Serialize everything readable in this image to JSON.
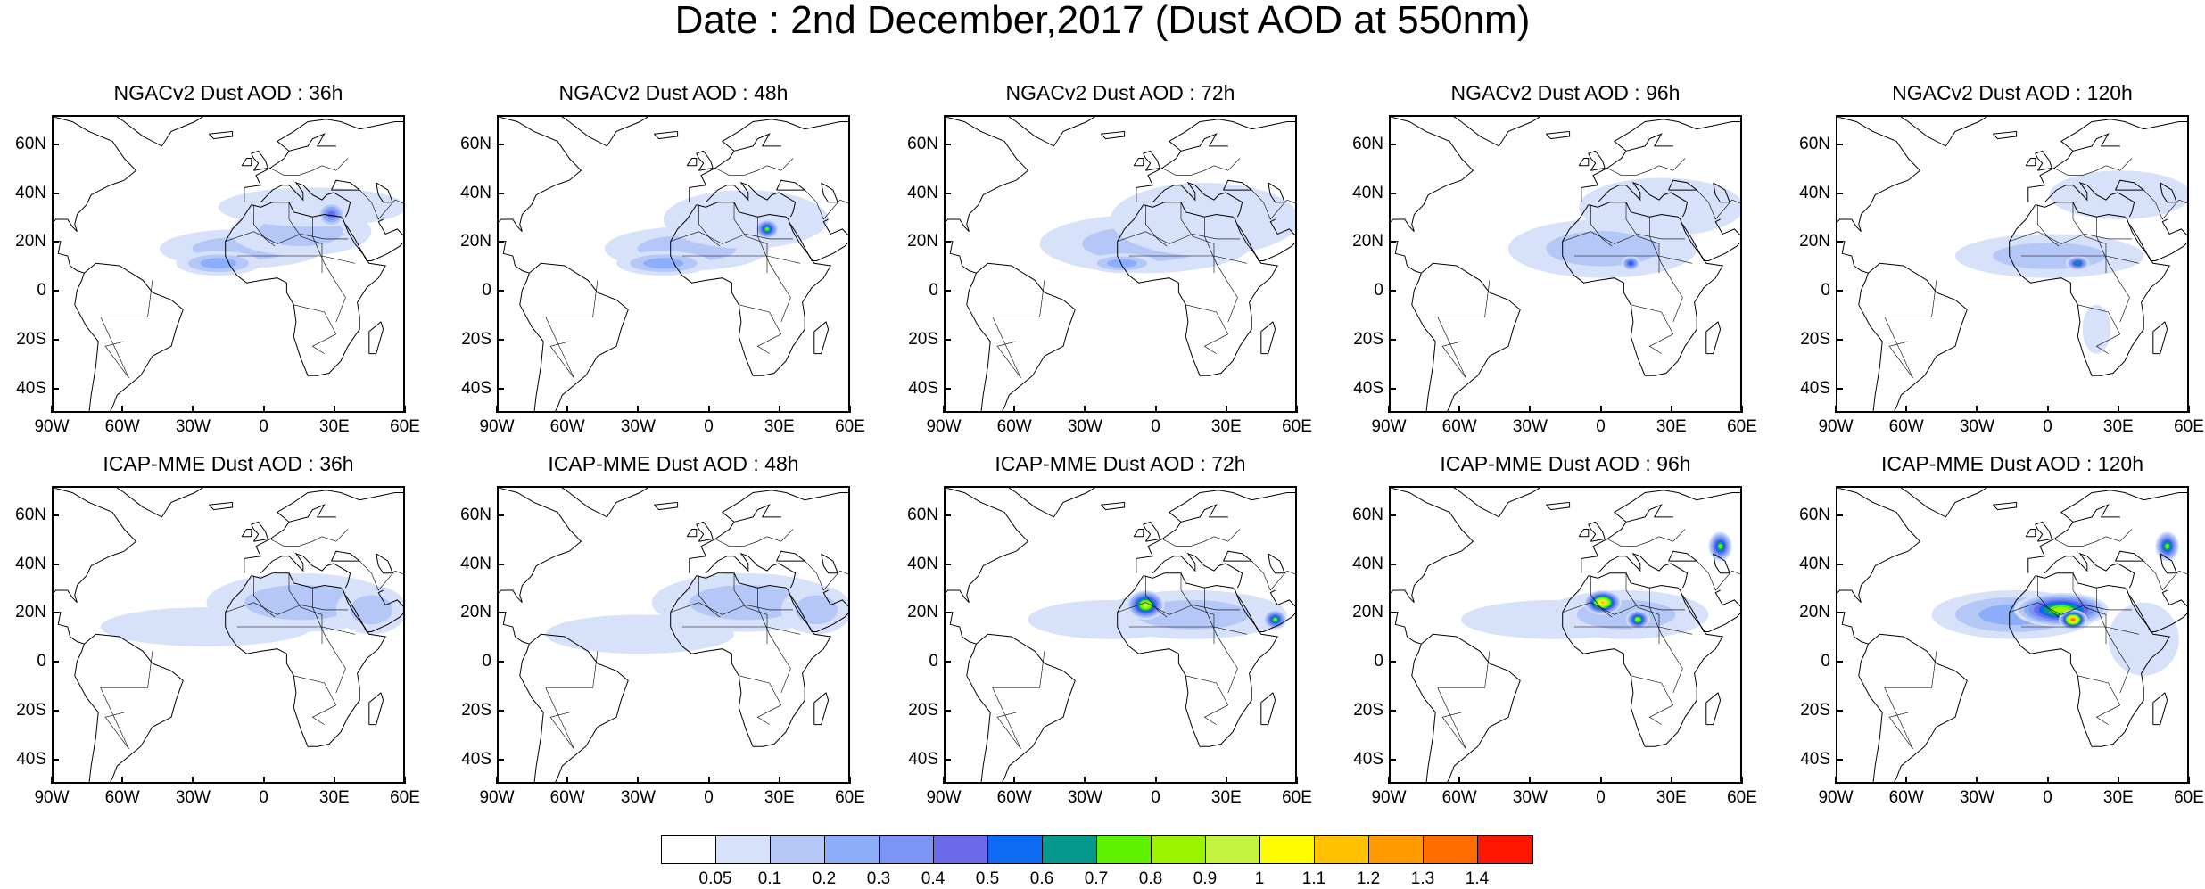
{
  "title": "Date : 2nd December,2017 (Dust AOD at 550nm)",
  "panels": [
    {
      "title": "NGACv2 Dust AOD : 36h",
      "row": 0,
      "col": 0,
      "plumes": [
        {
          "lon": -10,
          "lat": 18,
          "rx": 35,
          "ry": 8,
          "level": 2
        },
        {
          "lon": 15,
          "lat": 25,
          "rx": 30,
          "ry": 10,
          "level": 2
        },
        {
          "lon": 20,
          "lat": 35,
          "rx": 40,
          "ry": 8,
          "level": 1
        },
        {
          "lon": 28,
          "lat": 32,
          "rx": 6,
          "ry": 5,
          "level": 5
        },
        {
          "lon": -20,
          "lat": 12,
          "rx": 18,
          "ry": 5,
          "level": 3
        }
      ]
    },
    {
      "title": "NGACv2 Dust AOD : 48h",
      "row": 0,
      "col": 1,
      "plumes": [
        {
          "lon": -10,
          "lat": 18,
          "rx": 35,
          "ry": 9,
          "level": 2
        },
        {
          "lon": 15,
          "lat": 30,
          "rx": 35,
          "ry": 12,
          "level": 1
        },
        {
          "lon": 24,
          "lat": 26,
          "rx": 5,
          "ry": 4,
          "level": 8
        },
        {
          "lon": -20,
          "lat": 12,
          "rx": 20,
          "ry": 5,
          "level": 3
        }
      ]
    },
    {
      "title": "NGACv2 Dust AOD : 72h",
      "row": 0,
      "col": 2,
      "plumes": [
        {
          "lon": -5,
          "lat": 20,
          "rx": 45,
          "ry": 12,
          "level": 2
        },
        {
          "lon": 20,
          "lat": 30,
          "rx": 40,
          "ry": 15,
          "level": 1
        },
        {
          "lon": -15,
          "lat": 12,
          "rx": 15,
          "ry": 4,
          "level": 3
        }
      ]
    },
    {
      "title": "NGACv2 Dust AOD : 96h",
      "row": 0,
      "col": 3,
      "plumes": [
        {
          "lon": 0,
          "lat": 18,
          "rx": 40,
          "ry": 12,
          "level": 2
        },
        {
          "lon": 25,
          "lat": 35,
          "rx": 35,
          "ry": 12,
          "level": 1
        },
        {
          "lon": 12,
          "lat": 12,
          "rx": 4,
          "ry": 3,
          "level": 6
        }
      ]
    },
    {
      "title": "NGACv2 Dust AOD : 120h",
      "row": 0,
      "col": 4,
      "plumes": [
        {
          "lon": 0,
          "lat": 15,
          "rx": 40,
          "ry": 9,
          "level": 2
        },
        {
          "lon": 30,
          "lat": 40,
          "rx": 30,
          "ry": 10,
          "level": 1
        },
        {
          "lon": 12,
          "lat": 12,
          "rx": 5,
          "ry": 3,
          "level": 7
        },
        {
          "lon": 20,
          "lat": -15,
          "rx": 6,
          "ry": 10,
          "level": 1
        }
      ]
    },
    {
      "title": "ICAP-MME Dust AOD : 36h",
      "row": 1,
      "col": 0,
      "plumes": [
        {
          "lon": -25,
          "lat": 15,
          "rx": 45,
          "ry": 8,
          "level": 1
        },
        {
          "lon": 15,
          "lat": 25,
          "rx": 40,
          "ry": 12,
          "level": 2
        },
        {
          "lon": 45,
          "lat": 22,
          "rx": 15,
          "ry": 10,
          "level": 2
        }
      ]
    },
    {
      "title": "ICAP-MME Dust AOD : 48h",
      "row": 1,
      "col": 1,
      "plumes": [
        {
          "lon": -30,
          "lat": 12,
          "rx": 40,
          "ry": 8,
          "level": 1
        },
        {
          "lon": 15,
          "lat": 25,
          "rx": 40,
          "ry": 12,
          "level": 2
        },
        {
          "lon": 45,
          "lat": 22,
          "rx": 15,
          "ry": 10,
          "level": 2
        }
      ]
    },
    {
      "title": "ICAP-MME Dust AOD : 72h",
      "row": 1,
      "col": 2,
      "plumes": [
        {
          "lon": -20,
          "lat": 18,
          "rx": 35,
          "ry": 8,
          "level": 1
        },
        {
          "lon": 15,
          "lat": 20,
          "rx": 40,
          "ry": 10,
          "level": 2
        },
        {
          "lon": -5,
          "lat": 24,
          "rx": 8,
          "ry": 6,
          "level": 10
        },
        {
          "lon": 50,
          "lat": 18,
          "rx": 5,
          "ry": 4,
          "level": 8
        }
      ]
    },
    {
      "title": "ICAP-MME Dust AOD : 96h",
      "row": 1,
      "col": 3,
      "plumes": [
        {
          "lon": -20,
          "lat": 18,
          "rx": 40,
          "ry": 8,
          "level": 1
        },
        {
          "lon": 10,
          "lat": 20,
          "rx": 35,
          "ry": 10,
          "level": 2
        },
        {
          "lon": 0,
          "lat": 25,
          "rx": 8,
          "ry": 5,
          "level": 12
        },
        {
          "lon": 15,
          "lat": 18,
          "rx": 5,
          "ry": 4,
          "level": 9
        },
        {
          "lon": 50,
          "lat": 48,
          "rx": 5,
          "ry": 6,
          "level": 8
        }
      ]
    },
    {
      "title": "ICAP-MME Dust AOD : 120h",
      "row": 1,
      "col": 4,
      "plumes": [
        {
          "lon": -15,
          "lat": 20,
          "rx": 35,
          "ry": 10,
          "level": 3
        },
        {
          "lon": 5,
          "lat": 22,
          "rx": 20,
          "ry": 7,
          "level": 9
        },
        {
          "lon": 10,
          "lat": 18,
          "rx": 6,
          "ry": 4,
          "level": 14
        },
        {
          "lon": 40,
          "lat": 10,
          "rx": 15,
          "ry": 15,
          "level": 1
        },
        {
          "lon": 50,
          "lat": 48,
          "rx": 5,
          "ry": 6,
          "level": 8
        }
      ]
    }
  ],
  "lat_ticks": [
    "60N",
    "40N",
    "20N",
    "0",
    "20S",
    "40S"
  ],
  "lat_values": [
    60,
    40,
    20,
    0,
    -20,
    -40
  ],
  "lon_ticks": [
    "90W",
    "60W",
    "30W",
    "0",
    "30E",
    "60E"
  ],
  "lon_values": [
    -90,
    -60,
    -30,
    0,
    30,
    60
  ],
  "map_extent": {
    "lon_min": -90,
    "lon_max": 60,
    "lat_min": -50,
    "lat_max": 72
  },
  "colorbar": {
    "colors": [
      "#ffffff",
      "#d7e1fa",
      "#b5c7f7",
      "#8caefa",
      "#7c94f4",
      "#6b6ae8",
      "#0b6cf3",
      "#05998d",
      "#5ff200",
      "#9cf300",
      "#c4f33f",
      "#fffc00",
      "#ffc100",
      "#ff9b00",
      "#ff6d00",
      "#ff1600"
    ],
    "labels": [
      "0.05",
      "0.1",
      "0.2",
      "0.3",
      "0.4",
      "0.5",
      "0.6",
      "0.7",
      "0.8",
      "0.9",
      "1",
      "1.1",
      "1.2",
      "1.3",
      "1.4"
    ]
  },
  "coast_color": "#000000"
}
